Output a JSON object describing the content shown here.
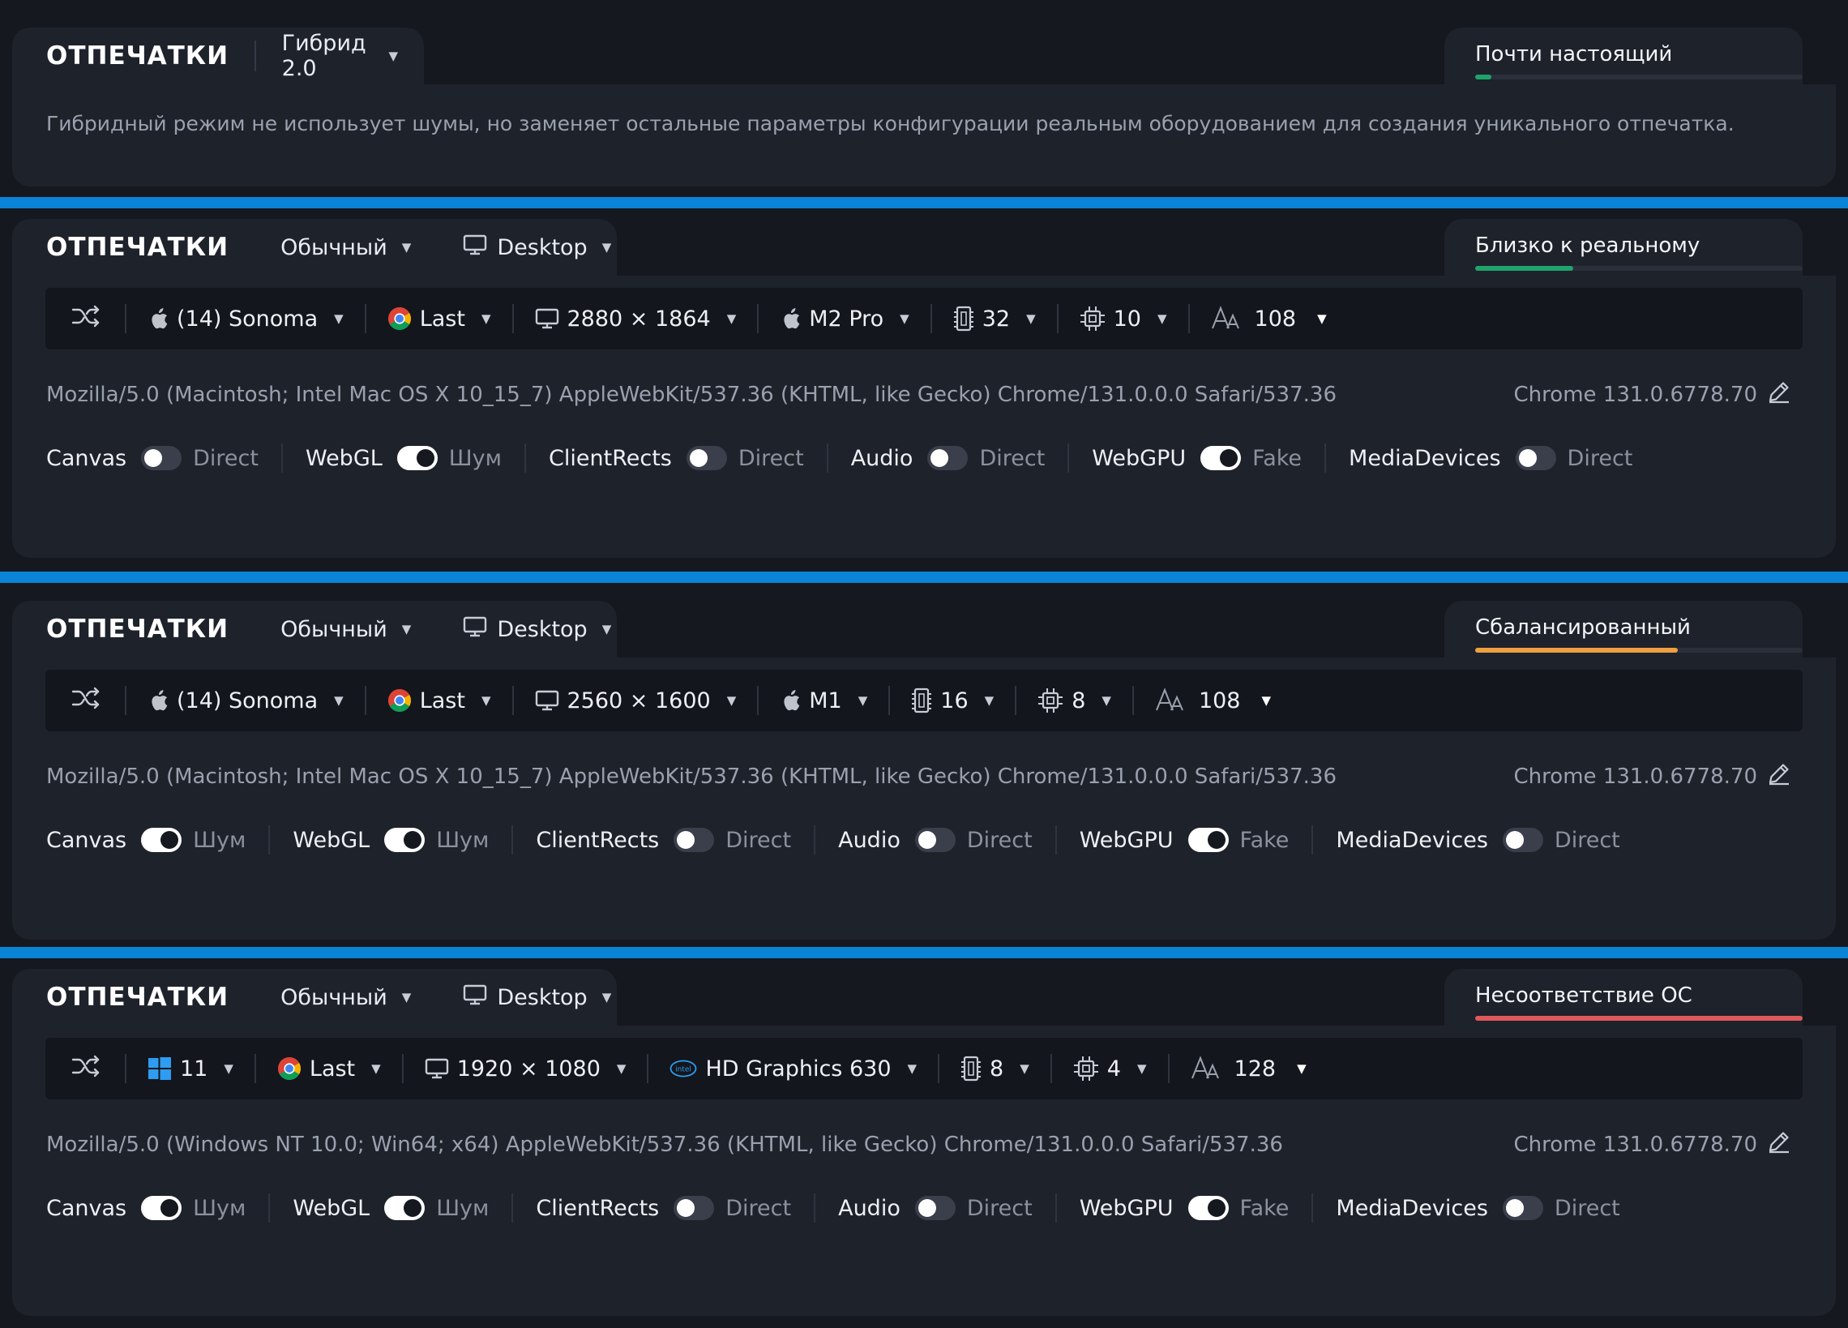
{
  "panels": [
    {
      "title": "ОТПЕЧАТКИ",
      "mode": "Гибрид 2.0",
      "quality": {
        "label": "Почти настоящий",
        "level": 0.05,
        "color": "#1fa36b"
      },
      "description": "Гибридный режим не использует шумы, но заменяет остальные параметры конфигурации реальным оборудованием для создания уникального отпечатка."
    },
    {
      "title": "ОТПЕЧАТКИ",
      "mode": "Обычный",
      "device": "Desktop",
      "quality": {
        "label": "Близко к реальному",
        "level": 0.3,
        "color": "#1fa36b"
      },
      "hardware": {
        "os_icon": "apple-icon",
        "os": "(14) Sonoma",
        "browser": "Last",
        "resolution": "2880 × 1864",
        "gpu_icon": "apple-icon",
        "gpu": "M2 Pro",
        "memory": "32",
        "cpu": "10",
        "fonts": "108"
      },
      "user_agent": "Mozilla/5.0 (Macintosh; Intel Mac OS X 10_15_7) AppleWebKit/537.36 (KHTML, like Gecko) Chrome/131.0.0.0 Safari/537.36",
      "version": "Chrome 131.0.6778.70",
      "toggles": [
        {
          "name": "Canvas",
          "on": false,
          "value": "Direct"
        },
        {
          "name": "WebGL",
          "on": true,
          "value": "Шум"
        },
        {
          "name": "ClientRects",
          "on": false,
          "value": "Direct"
        },
        {
          "name": "Audio",
          "on": false,
          "value": "Direct"
        },
        {
          "name": "WebGPU",
          "on": true,
          "value": "Fake"
        },
        {
          "name": "MediaDevices",
          "on": false,
          "value": "Direct"
        }
      ]
    },
    {
      "title": "ОТПЕЧАТКИ",
      "mode": "Обычный",
      "device": "Desktop",
      "quality": {
        "label": "Сбалансированный",
        "level": 0.62,
        "color": "#f0a040"
      },
      "hardware": {
        "os_icon": "apple-icon",
        "os": "(14) Sonoma",
        "browser": "Last",
        "resolution": "2560 × 1600",
        "gpu_icon": "apple-icon",
        "gpu": "M1",
        "memory": "16",
        "cpu": "8",
        "fonts": "108"
      },
      "user_agent": "Mozilla/5.0 (Macintosh; Intel Mac OS X 10_15_7) AppleWebKit/537.36 (KHTML, like Gecko) Chrome/131.0.0.0 Safari/537.36",
      "version": "Chrome 131.0.6778.70",
      "toggles": [
        {
          "name": "Canvas",
          "on": true,
          "value": "Шум"
        },
        {
          "name": "WebGL",
          "on": true,
          "value": "Шум"
        },
        {
          "name": "ClientRects",
          "on": false,
          "value": "Direct"
        },
        {
          "name": "Audio",
          "on": false,
          "value": "Direct"
        },
        {
          "name": "WebGPU",
          "on": true,
          "value": "Fake"
        },
        {
          "name": "MediaDevices",
          "on": false,
          "value": "Direct"
        }
      ]
    },
    {
      "title": "ОТПЕЧАТКИ",
      "mode": "Обычный",
      "device": "Desktop",
      "quality": {
        "label": "Несоответствие ОС",
        "level": 1.0,
        "color": "#e0585a"
      },
      "hardware": {
        "os_icon": "windows-icon",
        "os": "11",
        "browser": "Last",
        "resolution": "1920 × 1080",
        "gpu_icon": "intel-icon",
        "gpu_icon_text": "intel",
        "gpu": "HD Graphics 630",
        "memory": "8",
        "cpu": "4",
        "fonts": "128"
      },
      "user_agent": "Mozilla/5.0 (Windows NT 10.0; Win64; x64) AppleWebKit/537.36 (KHTML, like Gecko) Chrome/131.0.0.0 Safari/537.36",
      "version": "Chrome 131.0.6778.70",
      "toggles": [
        {
          "name": "Canvas",
          "on": true,
          "value": "Шум"
        },
        {
          "name": "WebGL",
          "on": true,
          "value": "Шум"
        },
        {
          "name": "ClientRects",
          "on": false,
          "value": "Direct"
        },
        {
          "name": "Audio",
          "on": false,
          "value": "Direct"
        },
        {
          "name": "WebGPU",
          "on": true,
          "value": "Fake"
        },
        {
          "name": "MediaDevices",
          "on": false,
          "value": "Direct"
        }
      ]
    }
  ],
  "colors": {
    "divider": "#0a84d6",
    "panel": "#1e222b",
    "background": "#15181f"
  }
}
